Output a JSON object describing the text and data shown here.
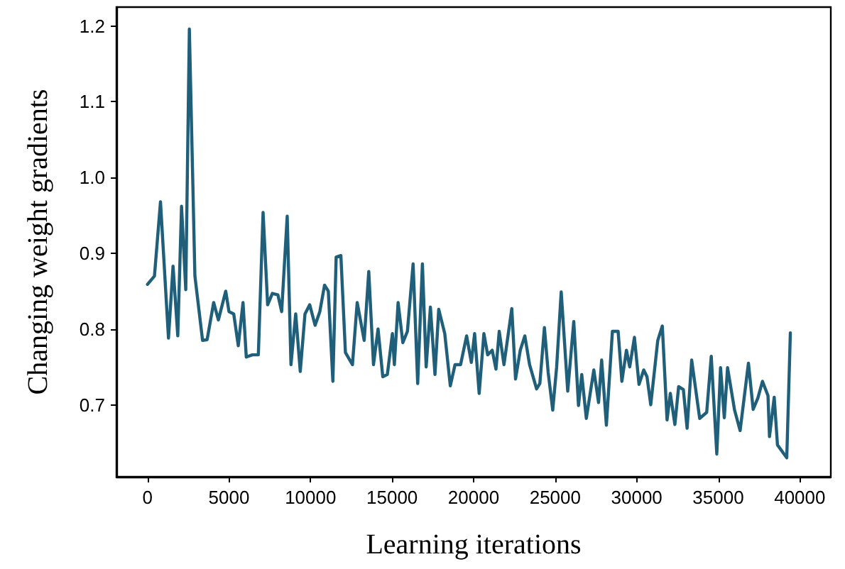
{
  "chart_data": {
    "type": "line",
    "xlabel": "Learning iterations",
    "ylabel": "Changing weight gradients",
    "x": [
      0,
      430,
      800,
      1290,
      1570,
      1860,
      2090,
      2350,
      2570,
      2910,
      3380,
      3660,
      4060,
      4350,
      4800,
      5000,
      5290,
      5570,
      5860,
      6060,
      6430,
      6800,
      7090,
      7370,
      7660,
      8000,
      8230,
      8570,
      8800,
      9090,
      9370,
      9660,
      9950,
      10280,
      10570,
      10860,
      11090,
      11370,
      11570,
      11860,
      12140,
      12570,
      12860,
      13290,
      13570,
      13860,
      14140,
      14430,
      14710,
      15020,
      15140,
      15370,
      15660,
      15940,
      16290,
      16570,
      16860,
      17090,
      17350,
      17630,
      17860,
      18230,
      18570,
      18860,
      19200,
      19570,
      19860,
      20060,
      20340,
      20630,
      20860,
      21140,
      21370,
      21570,
      21860,
      22340,
      22570,
      22860,
      23140,
      23430,
      23860,
      24060,
      24340,
      24570,
      24850,
      25090,
      25370,
      25770,
      26140,
      26430,
      26630,
      26910,
      27370,
      27660,
      27850,
      28140,
      28510,
      28860,
      29090,
      29370,
      29570,
      29860,
      30140,
      30430,
      30630,
      30860,
      31290,
      31570,
      31860,
      32060,
      32340,
      32570,
      32860,
      33090,
      33370,
      33860,
      34290,
      34570,
      34910,
      35140,
      35370,
      35570,
      36000,
      36340,
      36850,
      37140,
      37430,
      37710,
      38050,
      38140,
      38430,
      38630,
      39200,
      39420
    ],
    "series": [
      {
        "color": "#1f5f7a",
        "values": [
          0.859,
          0.87,
          0.968,
          0.788,
          0.883,
          0.791,
          0.962,
          0.852,
          1.196,
          0.87,
          0.785,
          0.786,
          0.835,
          0.812,
          0.85,
          0.823,
          0.82,
          0.778,
          0.835,
          0.763,
          0.766,
          0.766,
          0.954,
          0.832,
          0.847,
          0.845,
          0.823,
          0.949,
          0.753,
          0.82,
          0.744,
          0.82,
          0.832,
          0.805,
          0.823,
          0.858,
          0.85,
          0.731,
          0.895,
          0.897,
          0.769,
          0.753,
          0.835,
          0.785,
          0.876,
          0.753,
          0.8,
          0.737,
          0.74,
          0.794,
          0.753,
          0.835,
          0.782,
          0.797,
          0.886,
          0.728,
          0.886,
          0.75,
          0.829,
          0.74,
          0.826,
          0.794,
          0.725,
          0.753,
          0.753,
          0.791,
          0.756,
          0.794,
          0.715,
          0.794,
          0.766,
          0.772,
          0.747,
          0.797,
          0.753,
          0.827,
          0.734,
          0.772,
          0.791,
          0.753,
          0.721,
          0.728,
          0.802,
          0.743,
          0.693,
          0.75,
          0.849,
          0.718,
          0.81,
          0.699,
          0.74,
          0.682,
          0.746,
          0.703,
          0.759,
          0.673,
          0.797,
          0.797,
          0.731,
          0.772,
          0.75,
          0.789,
          0.727,
          0.746,
          0.737,
          0.7,
          0.785,
          0.804,
          0.68,
          0.715,
          0.674,
          0.724,
          0.72,
          0.669,
          0.759,
          0.682,
          0.69,
          0.764,
          0.635,
          0.749,
          0.683,
          0.749,
          0.693,
          0.666,
          0.755,
          0.694,
          0.709,
          0.731,
          0.712,
          0.658,
          0.71,
          0.647,
          0.63,
          0.795
        ]
      }
    ],
    "xlim": [
      -1900,
      41900
    ],
    "xticks": [
      0,
      5000,
      10000,
      15000,
      20000,
      25000,
      30000,
      35000,
      40000
    ],
    "ylim": [
      0.605,
      1.225
    ],
    "yticks": [
      0.7,
      0.8,
      0.9,
      {
        "value": 1,
        "label": "1.0"
      },
      1.1,
      1.2
    ],
    "grid": false,
    "marker": "none",
    "line_style": "solid"
  }
}
